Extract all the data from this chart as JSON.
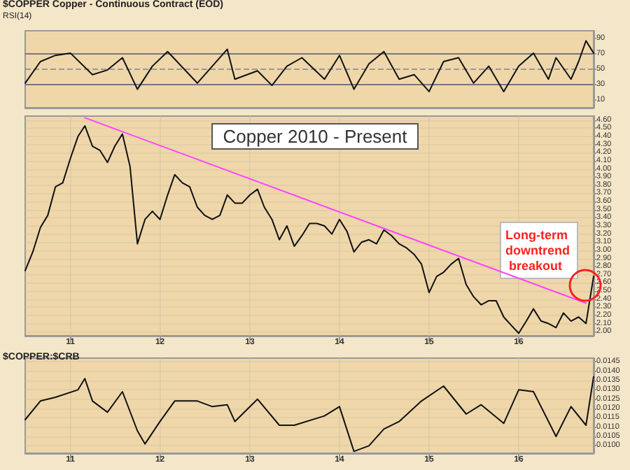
{
  "chart_data": [
    {
      "type": "line",
      "title": "$COPPER Copper - Continuous Contract (EOD)",
      "subtitle": "RSI(14)",
      "marker": "none",
      "line_style": "solid",
      "grid": "x",
      "tick_labels": "y",
      "xlim": [
        "2010-07",
        "2016-11"
      ],
      "ylim": [
        0,
        100
      ],
      "yticks": [
        10,
        30,
        50,
        70,
        90
      ],
      "ref_lines": [
        {
          "axis": "y",
          "value": 70,
          "color": "#777777",
          "line_style": "solid"
        },
        {
          "axis": "y",
          "value": 50,
          "color": "#999999",
          "line_style": "dashed"
        },
        {
          "axis": "y",
          "value": 30,
          "color": "#777777",
          "line_style": "solid"
        }
      ],
      "series": [
        {
          "color": "#111111",
          "x": [
            "2010-07",
            "2010-09",
            "2010-11",
            "2011-01",
            "2011-04",
            "2011-06",
            "2011-08",
            "2011-10",
            "2011-12",
            "2012-02",
            "2012-06",
            "2012-08",
            "2012-10",
            "2012-11",
            "2013-02",
            "2013-04",
            "2013-06",
            "2013-08",
            "2013-11",
            "2014-01",
            "2014-03",
            "2014-05",
            "2014-07",
            "2014-09",
            "2014-11",
            "2015-01",
            "2015-03",
            "2015-05",
            "2015-07",
            "2015-09",
            "2015-11",
            "2016-01",
            "2016-03",
            "2016-05",
            "2016-06",
            "2016-08",
            "2016-09",
            "2016-10",
            "2016-11"
          ],
          "values": [
            32,
            60,
            68,
            71,
            43,
            49,
            65,
            24,
            54,
            73,
            32,
            54,
            76,
            37,
            48,
            29,
            54,
            65,
            37,
            68,
            24,
            57,
            73,
            37,
            43,
            21,
            60,
            65,
            32,
            54,
            21,
            54,
            71,
            37,
            65,
            37,
            60,
            87,
            71
          ]
        }
      ]
    },
    {
      "type": "line",
      "title": "Copper 2010 - Present",
      "marker": "none",
      "line_style": "solid",
      "grid": true,
      "xlim": [
        "2010-07",
        "2016-11"
      ],
      "ylim": [
        1.95,
        4.65
      ],
      "xticks": [
        {
          "value": "2011-01",
          "label": "11"
        },
        {
          "value": "2012-01",
          "label": "12"
        },
        {
          "value": "2013-01",
          "label": "13"
        },
        {
          "value": "2014-01",
          "label": "14"
        },
        {
          "value": "2015-01",
          "label": "15"
        },
        {
          "value": "2016-01",
          "label": "16"
        }
      ],
      "yticks": [
        {
          "value": 2,
          "label": "2.00"
        },
        {
          "value": 2.1,
          "label": "2.10"
        },
        {
          "value": 2.2,
          "label": "2.20"
        },
        {
          "value": 2.3,
          "label": "2.30"
        },
        {
          "value": 2.4,
          "label": "2.40"
        },
        {
          "value": 2.5,
          "label": "2.50"
        },
        {
          "value": 2.6,
          "label": "2.60"
        },
        {
          "value": 2.7,
          "label": "2.70"
        },
        {
          "value": 2.8,
          "label": "2.80"
        },
        {
          "value": 2.9,
          "label": "2.90"
        },
        {
          "value": 3,
          "label": "3.00"
        },
        {
          "value": 3.1,
          "label": "3.10"
        },
        {
          "value": 3.2,
          "label": "3.20"
        },
        {
          "value": 3.3,
          "label": "3.30"
        },
        {
          "value": 3.4,
          "label": "3.40"
        },
        {
          "value": 3.5,
          "label": "3.50"
        },
        {
          "value": 3.6,
          "label": "3.60"
        },
        {
          "value": 3.7,
          "label": "3.70"
        },
        {
          "value": 3.8,
          "label": "3.80"
        },
        {
          "value": 3.9,
          "label": "3.90"
        },
        {
          "value": 4,
          "label": "4.00"
        },
        {
          "value": 4.1,
          "label": "4.10"
        },
        {
          "value": 4.2,
          "label": "4.20"
        },
        {
          "value": 4.3,
          "label": "4.30"
        },
        {
          "value": 4.4,
          "label": "4.40"
        },
        {
          "value": 4.5,
          "label": "4.50"
        },
        {
          "value": 4.6,
          "label": "4.60"
        }
      ],
      "annotations": [
        {
          "text": "Long-term downtrend breakout",
          "x": "2016-11",
          "y": 2.68
        }
      ],
      "series": [
        {
          "color": "#111111",
          "x": [
            "2010-07",
            "2010-08",
            "2010-09",
            "2010-10",
            "2010-11",
            "2010-12",
            "2011-01",
            "2011-02",
            "2011-03",
            "2011-04",
            "2011-05",
            "2011-06",
            "2011-07",
            "2011-08",
            "2011-09",
            "2011-10",
            "2011-11",
            "2011-12",
            "2012-01",
            "2012-02",
            "2012-03",
            "2012-04",
            "2012-05",
            "2012-06",
            "2012-07",
            "2012-08",
            "2012-09",
            "2012-10",
            "2012-11",
            "2012-12",
            "2013-01",
            "2013-02",
            "2013-03",
            "2013-04",
            "2013-05",
            "2013-06",
            "2013-07",
            "2013-08",
            "2013-09",
            "2013-10",
            "2013-11",
            "2013-12",
            "2014-01",
            "2014-02",
            "2014-03",
            "2014-04",
            "2014-05",
            "2014-06",
            "2014-07",
            "2014-08",
            "2014-09",
            "2014-10",
            "2014-11",
            "2014-12",
            "2015-01",
            "2015-02",
            "2015-03",
            "2015-04",
            "2015-05",
            "2015-06",
            "2015-07",
            "2015-08",
            "2015-09",
            "2015-10",
            "2015-11",
            "2015-12",
            "2016-01",
            "2016-02",
            "2016-03",
            "2016-04",
            "2016-05",
            "2016-06",
            "2016-07",
            "2016-08",
            "2016-09",
            "2016-10",
            "2016-11"
          ],
          "values": [
            2.75,
            2.98,
            3.28,
            3.43,
            3.78,
            3.83,
            4.13,
            4.4,
            4.53,
            4.28,
            4.23,
            4.08,
            4.28,
            4.43,
            4.03,
            3.08,
            3.38,
            3.48,
            3.38,
            3.68,
            3.93,
            3.83,
            3.78,
            3.53,
            3.43,
            3.38,
            3.43,
            3.68,
            3.58,
            3.58,
            3.68,
            3.75,
            3.53,
            3.38,
            3.13,
            3.3,
            3.05,
            3.18,
            3.33,
            3.33,
            3.3,
            3.2,
            3.38,
            3.23,
            2.98,
            3.1,
            3.13,
            3.08,
            3.25,
            3.18,
            3.08,
            3.03,
            2.95,
            2.83,
            2.48,
            2.68,
            2.73,
            2.83,
            2.9,
            2.58,
            2.43,
            2.33,
            2.38,
            2.38,
            2.18,
            2.08,
            1.98,
            2.13,
            2.28,
            2.13,
            2.1,
            2.05,
            2.23,
            2.13,
            2.18,
            2.1,
            2.68
          ]
        },
        {
          "color": "#ff44ff",
          "x": [
            "2011-03",
            "2016-10"
          ],
          "values": [
            4.63,
            2.35
          ]
        }
      ]
    },
    {
      "type": "line",
      "title": "$COPPER:$CRB",
      "marker": "none",
      "line_style": "solid",
      "grid": true,
      "xlim": [
        "2010-07",
        "2016-11"
      ],
      "ylim": [
        0.0096,
        0.0147
      ],
      "xticks": [
        {
          "value": "2011-01",
          "label": "11"
        },
        {
          "value": "2012-01",
          "label": "12"
        },
        {
          "value": "2013-01",
          "label": "13"
        },
        {
          "value": "2014-01",
          "label": "14"
        },
        {
          "value": "2015-01",
          "label": "15"
        },
        {
          "value": "2016-01",
          "label": "16"
        }
      ],
      "yticks": [
        {
          "value": 0.01,
          "label": "0.0100"
        },
        {
          "value": 0.0105,
          "label": "0.0105"
        },
        {
          "value": 0.011,
          "label": "0.0110"
        },
        {
          "value": 0.0115,
          "label": "0.0115"
        },
        {
          "value": 0.012,
          "label": "0.0120"
        },
        {
          "value": 0.0125,
          "label": "0.0125"
        },
        {
          "value": 0.013,
          "label": "0.0130"
        },
        {
          "value": 0.0135,
          "label": "0.0135"
        },
        {
          "value": 0.014,
          "label": "0.0140"
        },
        {
          "value": 0.0145,
          "label": "0.0145"
        }
      ],
      "series": [
        {
          "color": "#111111",
          "x": [
            "2010-07",
            "2010-09",
            "2010-11",
            "2011-02",
            "2011-03",
            "2011-04",
            "2011-06",
            "2011-08",
            "2011-10",
            "2011-11",
            "2012-01",
            "2012-03",
            "2012-06",
            "2012-08",
            "2012-10",
            "2012-11",
            "2013-02",
            "2013-05",
            "2013-07",
            "2013-11",
            "2014-01",
            "2014-03",
            "2014-05",
            "2014-07",
            "2014-09",
            "2014-12",
            "2015-03",
            "2015-06",
            "2015-08",
            "2015-11",
            "2016-01",
            "2016-03",
            "2016-06",
            "2016-08",
            "2016-10",
            "2016-11"
          ],
          "values": [
            0.0114,
            0.0124,
            0.0126,
            0.013,
            0.0136,
            0.0124,
            0.0118,
            0.0129,
            0.0108,
            0.0101,
            0.0113,
            0.0124,
            0.0124,
            0.0121,
            0.0122,
            0.0113,
            0.0125,
            0.0111,
            0.0111,
            0.0116,
            0.0121,
            0.0097,
            0.01,
            0.0109,
            0.0113,
            0.0124,
            0.0132,
            0.0117,
            0.0122,
            0.0112,
            0.013,
            0.0129,
            0.0105,
            0.0121,
            0.0111,
            0.0137
          ]
        }
      ]
    }
  ]
}
